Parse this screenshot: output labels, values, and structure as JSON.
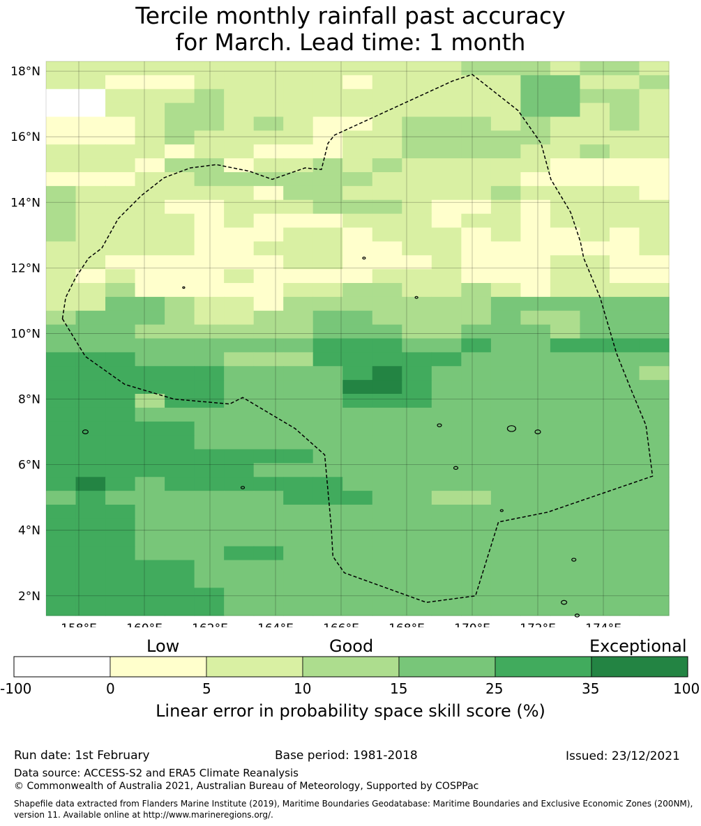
{
  "title": {
    "line1": "Tercile monthly rainfall past accuracy",
    "line2": "for March. Lead time: 1 month"
  },
  "map": {
    "lon_range": [
      157,
      176
    ],
    "lat_range": [
      1.4,
      18.3
    ],
    "lon_ticks": [
      158,
      160,
      162,
      164,
      166,
      168,
      170,
      172,
      174
    ],
    "lon_tick_labels": [
      "158°E",
      "160°E",
      "162°E",
      "164°E",
      "166°E",
      "168°E",
      "170°E",
      "172°E",
      "174°E"
    ],
    "lat_ticks": [
      2,
      4,
      6,
      8,
      10,
      12,
      14,
      16,
      18
    ],
    "lat_tick_labels": [
      "2°N",
      "4°N",
      "6°N",
      "8°N",
      "10°N",
      "12°N",
      "14°N",
      "16°N",
      "18°N"
    ],
    "grid_rows": [
      "222222222222223332332",
      "221112222212222244223",
      "002223222222222244332",
      "002233222222222244232",
      "111233232112333232232",
      "111232222122333332222",
      "222212211122333322322",
      "222133122323222221111",
      "111223333332222211111",
      "322222213322222322221",
      "322211222333211212222",
      "322221211122212212222",
      "322221112212221211212",
      "222221122211221111112",
      "221111112211121112211",
      "212111211112221112211",
      "223111112233223212222",
      "224432213333333444444",
      "344432233443333433444",
      "444333333444334443444",
      "444444444555445445555",
      "555444333555554444444",
      "555555444456544444443",
      "555555444466544444444",
      "555355444455544444444",
      "555444444444444444444",
      "555554444444444444444",
      "555554444444444444444",
      "555555555444444444444",
      "555555544444444444444",
      "565455555544444444444",
      "454444445554433444444",
      "555444444444444444444",
      "555444444444444444444",
      "555444444444444444444",
      "555444554444444444444",
      "555554444444444444444",
      "555554444444444444444",
      "555555444444444444444",
      "555555444444444444444"
    ]
  },
  "colorbar": {
    "categories": [
      "Low",
      "Good",
      "Exceptional"
    ],
    "tick_labels": [
      "-100",
      "0",
      "5",
      "10",
      "15",
      "25",
      "35",
      "100"
    ],
    "colors": [
      "#ffffff",
      "#ffffcc",
      "#d9f0a3",
      "#addd8e",
      "#78c679",
      "#41ab5d",
      "#238443"
    ],
    "label": "Linear error in probability space skill score (%)"
  },
  "footer": {
    "run_date": "Run date: 1st February",
    "base_period": "Base period: 1981-2018",
    "issued": "Issued: 23/12/2021",
    "data_source": "Data source: ACCESS-S2 and ERA5 Climate Reanalysis",
    "copyright": "© Commonwealth of Australia 2021, Australian Bureau of Meteorology, Supported by COSPPac",
    "shapefile": "Shapefile data extracted from Flanders Marine Institute (2019), Maritime Boundaries Geodatabase: Maritime Boundaries and Exclusive Economic Zones (200NM), version 11. Available online at http://www.marineregions.org/."
  }
}
